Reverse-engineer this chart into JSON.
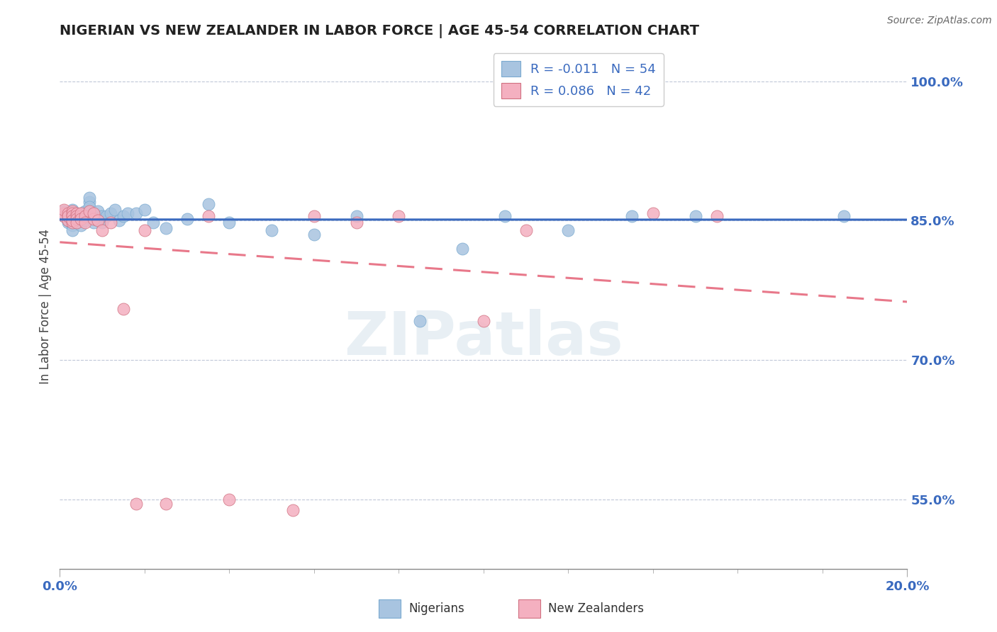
{
  "title": "NIGERIAN VS NEW ZEALANDER IN LABOR FORCE | AGE 45-54 CORRELATION CHART",
  "source": "Source: ZipAtlas.com",
  "ylabel": "In Labor Force | Age 45-54",
  "xlim": [
    0.0,
    0.2
  ],
  "ylim": [
    0.475,
    1.04
  ],
  "yticks": [
    0.55,
    0.7,
    0.85,
    1.0
  ],
  "ytick_labels": [
    "55.0%",
    "70.0%",
    "85.0%",
    "100.0%"
  ],
  "xtick_labels_bottom": [
    "0.0%",
    "20.0%"
  ],
  "blue_color": "#3a6abf",
  "pink_color": "#e8788a",
  "dot_blue": "#a8c4e0",
  "dot_pink": "#f4b0c0",
  "legend_r1": "R = -0.011   N = 54",
  "legend_r2": "R = 0.086   N = 42",
  "watermark": "ZIPatlas",
  "nig_x": [
    0.001,
    0.001,
    0.002,
    0.002,
    0.002,
    0.002,
    0.003,
    0.003,
    0.003,
    0.003,
    0.003,
    0.003,
    0.004,
    0.004,
    0.004,
    0.004,
    0.005,
    0.005,
    0.005,
    0.005,
    0.006,
    0.006,
    0.007,
    0.007,
    0.007,
    0.008,
    0.008,
    0.009,
    0.009,
    0.01,
    0.01,
    0.011,
    0.012,
    0.013,
    0.014,
    0.015,
    0.016,
    0.018,
    0.02,
    0.022,
    0.025,
    0.03,
    0.035,
    0.04,
    0.05,
    0.06,
    0.07,
    0.085,
    0.095,
    0.105,
    0.12,
    0.135,
    0.15,
    0.185
  ],
  "nig_y": [
    0.855,
    0.86,
    0.852,
    0.848,
    0.858,
    0.85,
    0.855,
    0.858,
    0.845,
    0.85,
    0.84,
    0.862,
    0.858,
    0.852,
    0.855,
    0.848,
    0.858,
    0.855,
    0.85,
    0.845,
    0.86,
    0.85,
    0.87,
    0.875,
    0.865,
    0.858,
    0.848,
    0.855,
    0.86,
    0.855,
    0.848,
    0.855,
    0.858,
    0.862,
    0.85,
    0.855,
    0.858,
    0.858,
    0.862,
    0.848,
    0.842,
    0.852,
    0.868,
    0.848,
    0.84,
    0.835,
    0.855,
    0.742,
    0.82,
    0.855,
    0.84,
    0.855,
    0.855,
    0.855
  ],
  "nz_x": [
    0.001,
    0.001,
    0.001,
    0.002,
    0.002,
    0.002,
    0.002,
    0.003,
    0.003,
    0.003,
    0.003,
    0.003,
    0.003,
    0.004,
    0.004,
    0.004,
    0.004,
    0.005,
    0.005,
    0.005,
    0.006,
    0.006,
    0.007,
    0.008,
    0.008,
    0.009,
    0.01,
    0.012,
    0.015,
    0.018,
    0.02,
    0.025,
    0.035,
    0.04,
    0.055,
    0.06,
    0.07,
    0.08,
    0.1,
    0.11,
    0.14,
    0.155
  ],
  "nz_y": [
    0.858,
    0.855,
    0.862,
    0.855,
    0.858,
    0.85,
    0.855,
    0.86,
    0.855,
    0.858,
    0.848,
    0.855,
    0.85,
    0.858,
    0.855,
    0.852,
    0.848,
    0.855,
    0.858,
    0.852,
    0.855,
    0.848,
    0.86,
    0.852,
    0.858,
    0.85,
    0.84,
    0.848,
    0.755,
    0.545,
    0.84,
    0.545,
    0.855,
    0.55,
    0.538,
    0.855,
    0.848,
    0.855,
    0.742,
    0.84,
    0.858,
    0.855
  ]
}
